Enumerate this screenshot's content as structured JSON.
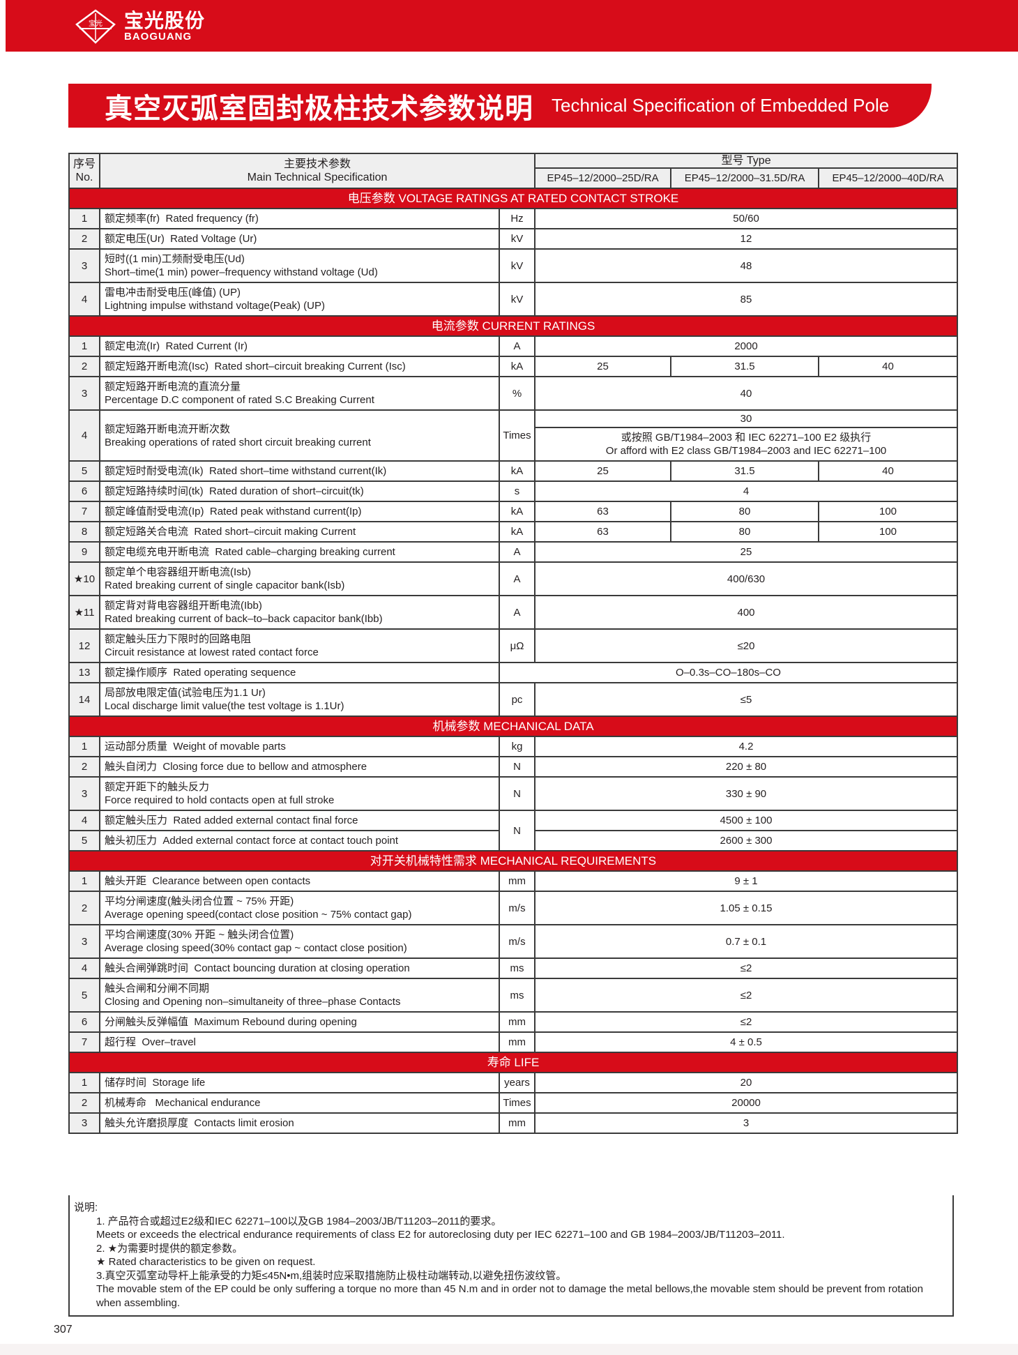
{
  "brand": {
    "name_zh": "宝光股份",
    "name_en": "BAOGUANG",
    "logo_text": "宝光",
    "color": "#d70c19"
  },
  "title": {
    "zh": "真空灭弧室固封极柱技术参数说明",
    "en": "Technical Specification of Embedded Pole"
  },
  "table": {
    "header": {
      "no_zh": "序号",
      "no_en": "No.",
      "spec_zh": "主要技术参数",
      "spec_en": "Main Technical Specification",
      "type_label": "型号  Type",
      "models": [
        "EP45–12/2000–25D/RA",
        "EP45–12/2000–31.5D/RA",
        "EP45–12/2000–40D/RA"
      ]
    },
    "sections": [
      {
        "title": "电压参数   VOLTAGE RATINGS AT RATED CONTACT STROKE",
        "rows": [
          {
            "no": "1",
            "zh": "额定频率(fr)",
            "en": "Rated frequency (fr)",
            "unit": "Hz",
            "values": [
              "50/60"
            ]
          },
          {
            "no": "2",
            "zh": "额定电压(Ur)",
            "en": "Rated Voltage (Ur)",
            "unit": "kV",
            "values": [
              "12"
            ]
          },
          {
            "no": "3",
            "zh": "短时((1 min)工频耐受电压(Ud)",
            "en": "Short–time(1 min) power–frequency withstand voltage (Ud)",
            "two": true,
            "unit": "kV",
            "values": [
              "48"
            ]
          },
          {
            "no": "4",
            "zh": "雷电冲击耐受电压(峰值) (UP)",
            "en": "Lightning impulse withstand voltage(Peak) (UP)",
            "two": true,
            "unit": "kV",
            "values": [
              "85"
            ]
          }
        ]
      },
      {
        "title": "电流参数  CURRENT RATINGS",
        "rows": [
          {
            "no": "1",
            "zh": "额定电流(Ir)",
            "en": "Rated Current (Ir)",
            "unit": "A",
            "values": [
              "2000"
            ]
          },
          {
            "no": "2",
            "zh": "额定短路开断电流(Isc)",
            "en": "Rated short–circuit breaking Current (Isc)",
            "unit": "kA",
            "values": [
              "25",
              "31.5",
              "40"
            ]
          },
          {
            "no": "3",
            "zh": "额定短路开断电流的直流分量",
            "en": "Percentage D.C component of rated S.C Breaking Current",
            "two": true,
            "unit": "%",
            "values": [
              "40"
            ]
          },
          {
            "no": "4",
            "zh": "额定短路开断电流开断次数",
            "en": "Breaking operations of rated short circuit breaking current",
            "two": true,
            "unit": "Times",
            "values": [
              "30"
            ],
            "sub": {
              "zh": "或按照 GB/T1984–2003 和 IEC 62271–100 E2 级执行",
              "en": "Or afford with E2 class GB/T1984–2003 and IEC 62271–100"
            }
          },
          {
            "no": "5",
            "zh": "额定短时耐受电流(Ik)",
            "en": "Rated short–time withstand current(Ik)",
            "unit": "kA",
            "values": [
              "25",
              "31.5",
              "40"
            ]
          },
          {
            "no": "6",
            "zh": "额定短路持续时间(tk)",
            "en": "Rated duration of short–circuit(tk)",
            "unit": "s",
            "values": [
              "4"
            ]
          },
          {
            "no": "7",
            "zh": "额定峰值耐受电流(Ip)",
            "en": "Rated peak withstand current(Ip)",
            "unit": "kA",
            "values": [
              "63",
              "80",
              "100"
            ]
          },
          {
            "no": "8",
            "zh": "额定短路关合电流",
            "en": "Rated short–circuit making Current",
            "unit": "kA",
            "values": [
              "63",
              "80",
              "100"
            ]
          },
          {
            "no": "9",
            "zh": "额定电缆充电开断电流",
            "en": "Rated cable–charging breaking current",
            "unit": "A",
            "values": [
              "25"
            ]
          },
          {
            "no": "★10",
            "zh": "额定单个电容器组开断电流(Isb)",
            "en": "Rated breaking current of single capacitor bank(Isb)",
            "two": true,
            "unit": "A",
            "values": [
              "400/630"
            ]
          },
          {
            "no": "★11",
            "zh": "额定背对背电容器组开断电流(Ibb)",
            "en": "Rated breaking current of back–to–back capacitor bank(Ibb)",
            "two": true,
            "unit": "A",
            "values": [
              "400"
            ]
          },
          {
            "no": "12",
            "zh": "额定触头压力下限时的回路电阻",
            "en": "Circuit resistance at lowest rated contact force",
            "two": true,
            "unit": "μΩ",
            "values": [
              "≤20"
            ]
          },
          {
            "no": "13",
            "zh": "额定操作顺序",
            "en": "Rated operating sequence",
            "values": [
              "O–0.3s–CO–180s–CO"
            ]
          },
          {
            "no": "14",
            "zh": "局部放电限定值(试验电压为1.1 Ur)",
            "en": "Local discharge limit value(the test voltage is 1.1Ur)",
            "two": true,
            "unit": "pc",
            "values": [
              "≤5"
            ]
          }
        ]
      },
      {
        "title": "机械参数  MECHANICAL DATA",
        "rows": [
          {
            "no": "1",
            "zh": "运动部分质量",
            "en": "Weight of movable parts",
            "unit": "kg",
            "values": [
              "4.2"
            ]
          },
          {
            "no": "2",
            "zh": "触头自闭力",
            "en": "Closing force due to bellow and atmosphere",
            "unit": "N",
            "values": [
              "220 ± 80"
            ]
          },
          {
            "no": "3",
            "zh": "额定开距下的触头反力",
            "en": "Force required to hold contacts open at full stroke",
            "two": true,
            "unit": "N",
            "values": [
              "330 ± 90"
            ]
          },
          {
            "no": "4",
            "zh": "额定触头压力",
            "en": "Rated added external contact final force",
            "unit": "N",
            "unit_span": 2,
            "values": [
              "4500 ± 100"
            ]
          },
          {
            "no": "5",
            "zh": "触头初压力",
            "en": "Added external contact force at contact touch point",
            "unit_skip": true,
            "values": [
              "2600 ± 300"
            ]
          }
        ]
      },
      {
        "title": "对开关机械特性需求  MECHANICAL REQUIREMENTS",
        "rows": [
          {
            "no": "1",
            "zh": "触头开距",
            "en": "Clearance between open contacts",
            "unit": "mm",
            "values": [
              "9 ± 1"
            ]
          },
          {
            "no": "2",
            "zh": "平均分闸速度(触头闭合位置 ~ 75% 开距)",
            "en": "Average opening speed(contact close position ~ 75% contact gap)",
            "two": true,
            "unit": "m/s",
            "values": [
              "1.05 ± 0.15"
            ]
          },
          {
            "no": "3",
            "zh": "平均合闸速度(30% 开距 ~ 触头闭合位置)",
            "en": "Average closing speed(30% contact gap ~ contact close position)",
            "two": true,
            "unit": "m/s",
            "values": [
              "0.7 ± 0.1"
            ]
          },
          {
            "no": "4",
            "zh": "触头合闸弹跳时间",
            "en": "Contact bouncing duration at closing operation",
            "unit": "ms",
            "values": [
              "≤2"
            ]
          },
          {
            "no": "5",
            "zh": "触头合闸和分闸不同期",
            "en": "Closing and Opening non–simultaneity of three–phase Contacts",
            "two": true,
            "unit": "ms",
            "values": [
              "≤2"
            ]
          },
          {
            "no": "6",
            "zh": "分闸触头反弹幅值",
            "en": "Maximum Rebound during opening",
            "unit": "mm",
            "values": [
              "≤2"
            ]
          },
          {
            "no": "7",
            "zh": "超行程",
            "en": "Over–travel",
            "unit": "mm",
            "values": [
              "4 ± 0.5"
            ]
          }
        ]
      },
      {
        "title": "寿命  LIFE",
        "rows": [
          {
            "no": "1",
            "zh": "储存时间",
            "en": "Storage life",
            "unit": "years",
            "values": [
              "20"
            ]
          },
          {
            "no": "2",
            "zh": "机械寿命 ",
            "en": "Mechanical endurance",
            "unit": "Times",
            "values": [
              "20000"
            ]
          },
          {
            "no": "3",
            "zh": "触头允许磨损厚度",
            "en": "Contacts limit erosion",
            "unit": "mm",
            "values": [
              "3"
            ]
          }
        ]
      }
    ]
  },
  "notes": {
    "label": "说明:",
    "lines": [
      "1. 产品符合或超过E2级和IEC 62271–100以及GB 1984–2003/JB/T11203–2011的要求。",
      "Meets or exceeds the electrical endurance requirements of class E2 for autoreclosing duty per IEC 62271–100 and GB 1984–2003/JB/T11203–2011.",
      "2. ★为需要时提供的额定参数。",
      "★ Rated characteristics to be given on request.",
      "3.真空灭弧室动导杆上能承受的力矩≤45N•m,组装时应采取措施防止极柱动端转动,以避免扭伤波纹管。",
      "The movable stem of the EP could be only suffering a torque no more than 45 N.m and in order not to damage the metal bellows,the movable stem should be prevent from rotation when assembling."
    ]
  },
  "page_number": "307"
}
